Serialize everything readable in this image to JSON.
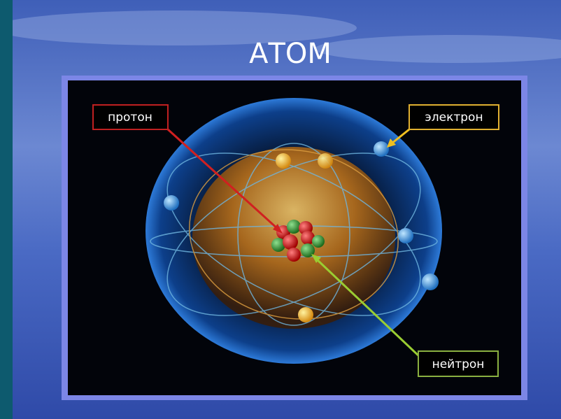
{
  "title": "АТОМ",
  "labels": {
    "proton": "протон",
    "electron": "электрон",
    "neutron": "нейтрон"
  }
}
